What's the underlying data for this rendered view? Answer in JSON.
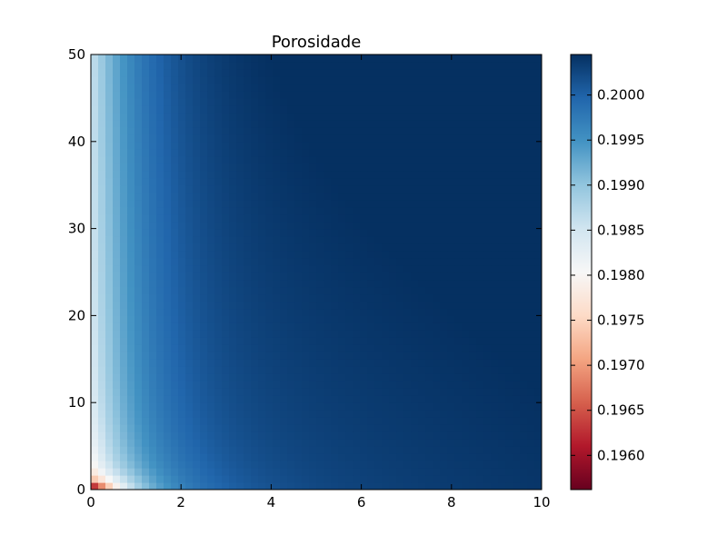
{
  "chart_data": {
    "type": "heatmap",
    "title": "Porosidade",
    "xlabel": "",
    "ylabel": "",
    "xlim": [
      0,
      10
    ],
    "ylim": [
      0,
      50
    ],
    "x_ticks": [
      "0",
      "2",
      "4",
      "6",
      "8",
      "10"
    ],
    "y_ticks": [
      "0",
      "10",
      "20",
      "30",
      "40",
      "50"
    ],
    "colorbar": {
      "range": [
        0.19562,
        0.20045
      ],
      "ticks": [
        "0.1960",
        "0.1965",
        "0.1970",
        "0.1975",
        "0.1980",
        "0.1985",
        "0.1990",
        "0.1995",
        "0.2000"
      ],
      "colormap": "RdBu",
      "colors": [
        "#67001f",
        "#b2182b",
        "#d6604d",
        "#f4a582",
        "#fddbc7",
        "#f7f7f7",
        "#d1e5f0",
        "#92c5de",
        "#4393c3",
        "#2166ac",
        "#053061"
      ]
    },
    "grid": false
  }
}
